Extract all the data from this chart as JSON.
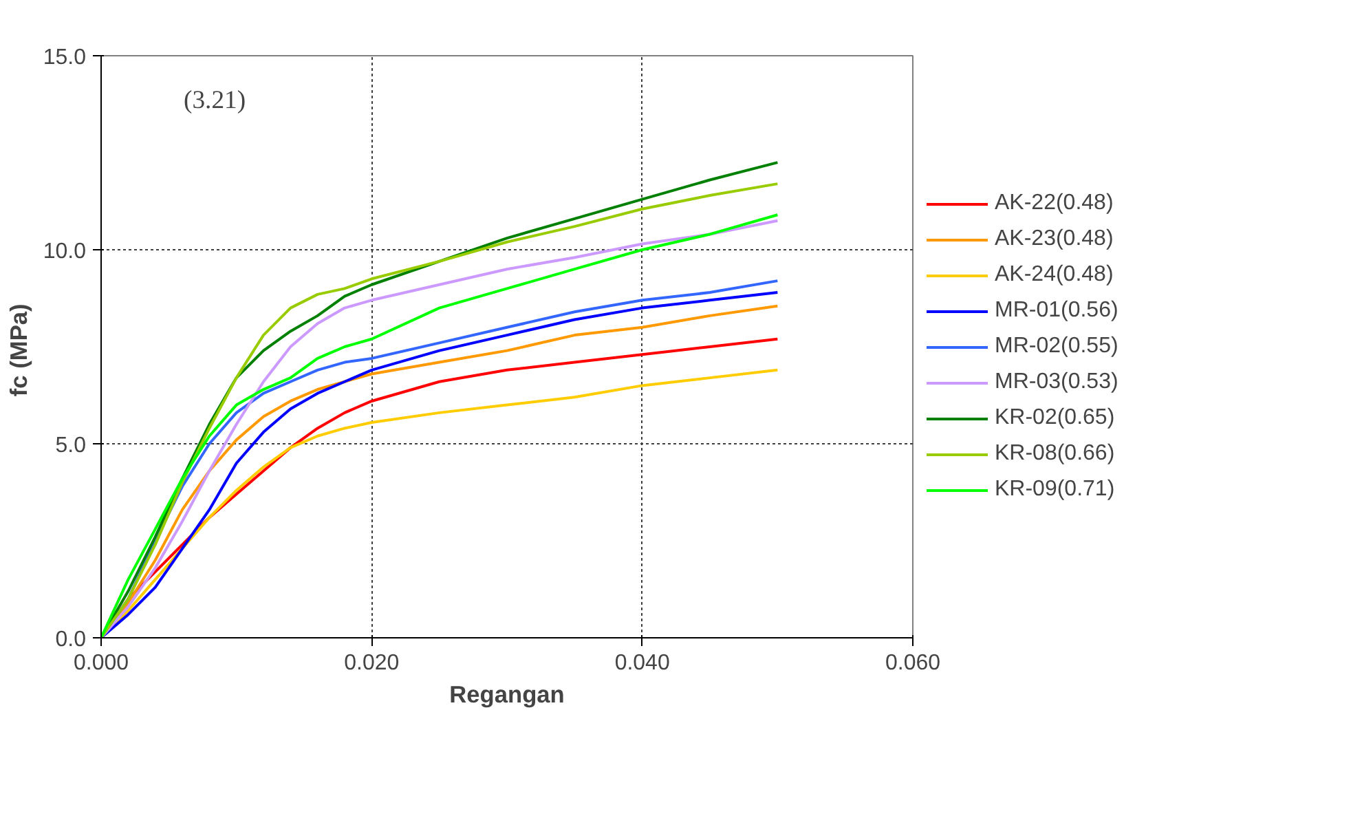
{
  "chart_data": {
    "type": "line",
    "xlabel": "Regangan",
    "ylabel": "fc  (MPa)",
    "annotations": [
      "(3.21)"
    ],
    "x": [
      0,
      0.002,
      0.004,
      0.006,
      0.008,
      0.01,
      0.012,
      0.014,
      0.016,
      0.018,
      0.02,
      0.025,
      0.03,
      0.035,
      0.04,
      0.045,
      0.05
    ],
    "series": [
      {
        "name": "AK-22(0.48)",
        "color": "#ff0000",
        "values": [
          0,
          1.0,
          1.7,
          2.4,
          3.1,
          3.7,
          4.3,
          4.9,
          5.4,
          5.8,
          6.1,
          6.6,
          6.9,
          7.1,
          7.3,
          7.5,
          7.7
        ]
      },
      {
        "name": "AK-23(0.48)",
        "color": "#ff9900",
        "values": [
          0,
          0.9,
          2.0,
          3.3,
          4.3,
          5.1,
          5.7,
          6.1,
          6.4,
          6.6,
          6.8,
          7.1,
          7.4,
          7.8,
          8.0,
          8.3,
          8.55
        ]
      },
      {
        "name": "AK-24(0.48)",
        "color": "#ffcc00",
        "values": [
          0,
          0.7,
          1.5,
          2.3,
          3.1,
          3.8,
          4.4,
          4.9,
          5.2,
          5.4,
          5.55,
          5.8,
          6.0,
          6.2,
          6.5,
          6.7,
          6.9
        ]
      },
      {
        "name": "MR-01(0.56)",
        "color": "#0000ff",
        "values": [
          0,
          0.6,
          1.3,
          2.3,
          3.3,
          4.5,
          5.3,
          5.9,
          6.3,
          6.6,
          6.9,
          7.4,
          7.8,
          8.2,
          8.5,
          8.7,
          8.9
        ]
      },
      {
        "name": "MR-02(0.55)",
        "color": "#3366ff",
        "values": [
          0,
          1.0,
          2.5,
          3.9,
          5.0,
          5.8,
          6.3,
          6.6,
          6.9,
          7.1,
          7.2,
          7.6,
          8.0,
          8.4,
          8.7,
          8.9,
          9.2
        ]
      },
      {
        "name": "MR-03(0.53)",
        "color": "#cc99ff",
        "values": [
          0,
          0.8,
          1.8,
          3.0,
          4.3,
          5.5,
          6.6,
          7.5,
          8.1,
          8.5,
          8.7,
          9.1,
          9.5,
          9.8,
          10.15,
          10.4,
          10.75
        ]
      },
      {
        "name": "KR-02(0.65)",
        "color": "#008000",
        "values": [
          0,
          1.2,
          2.6,
          4.1,
          5.5,
          6.7,
          7.4,
          7.9,
          8.3,
          8.8,
          9.1,
          9.7,
          10.3,
          10.8,
          11.3,
          11.8,
          12.25
        ]
      },
      {
        "name": "KR-08(0.66)",
        "color": "#99cc00",
        "values": [
          0,
          1.0,
          2.4,
          4.0,
          5.4,
          6.7,
          7.8,
          8.5,
          8.85,
          9.0,
          9.25,
          9.7,
          10.2,
          10.6,
          11.05,
          11.4,
          11.7
        ]
      },
      {
        "name": "KR-09(0.71)",
        "color": "#00ff00",
        "values": [
          0,
          1.5,
          2.8,
          4.1,
          5.2,
          6.0,
          6.4,
          6.7,
          7.2,
          7.5,
          7.7,
          8.5,
          9.0,
          9.5,
          10.0,
          10.4,
          10.9
        ]
      }
    ],
    "xlim": [
      0,
      0.06
    ],
    "xticks": [
      {
        "value": 0,
        "label": "0.000"
      },
      {
        "value": 0.02,
        "label": "0.020"
      },
      {
        "value": 0.04,
        "label": "0.040"
      },
      {
        "value": 0.06,
        "label": "0.060"
      }
    ],
    "ylim": [
      0,
      15
    ],
    "yticks": [
      {
        "value": 0,
        "label": "0.0"
      },
      {
        "value": 5,
        "label": "5.0"
      },
      {
        "value": 10,
        "label": "10.0"
      },
      {
        "value": 15,
        "label": "15.0"
      }
    ],
    "grid": true,
    "legend": "right",
    "marker": "none",
    "line_style": "solid"
  }
}
